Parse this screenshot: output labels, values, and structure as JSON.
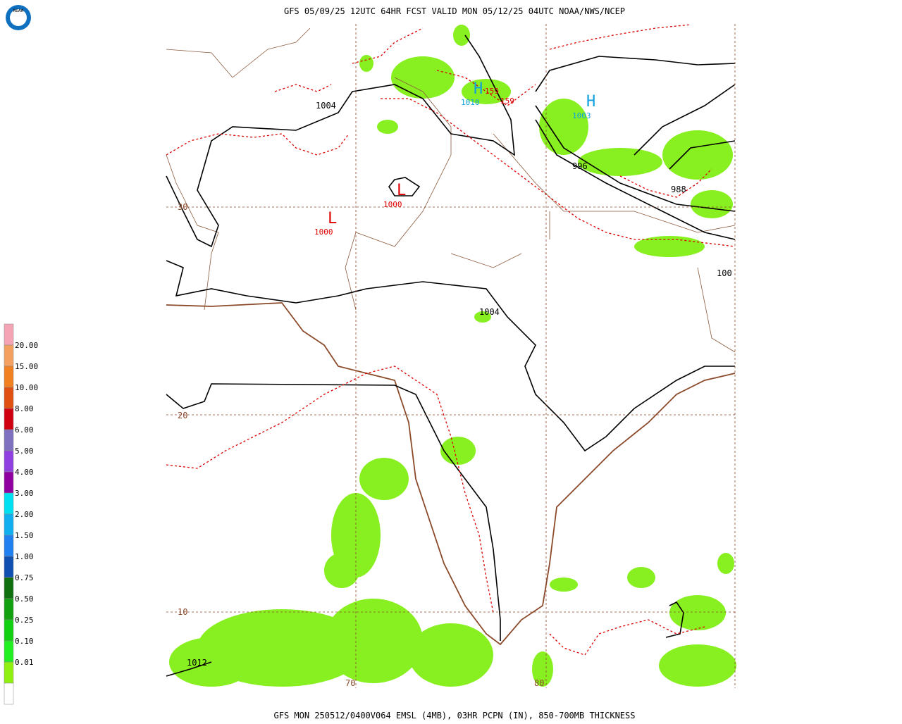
{
  "header": {
    "title": "GFS 05/09/25 12UTC 64HR FCST VALID MON 05/12/25 04UTC NOAA/NWS/NCEP",
    "logo": "NOAA"
  },
  "footer": "GFS MON 250512/0400V064 EMSL (4MB), 03HR PCPN (IN), 850-700MB THICKNESS",
  "legend": {
    "colors": [
      "#f4a4b4",
      "#f4a060",
      "#f08020",
      "#e05010",
      "#d00010",
      "#8070c0",
      "#9040e0",
      "#9000a0",
      "#00e0f0",
      "#10b0f0",
      "#2080f0",
      "#1050b0",
      "#107010",
      "#10a010",
      "#10d010",
      "#20f020",
      "#90f010",
      "#ffffff"
    ],
    "labels": [
      "20.00",
      "15.00",
      "10.00",
      "8.00",
      "6.00",
      "5.00",
      "4.00",
      "3.00",
      "2.00",
      "1.50",
      "1.00",
      "0.75",
      "0.50",
      "0.25",
      "0.10",
      "0.01"
    ]
  },
  "map": {
    "lat_labels": [
      "30",
      "20",
      "10"
    ],
    "lon_labels": [
      "70",
      "80"
    ],
    "labels": {
      "isobar_1004_n": "1004",
      "isobar_1004_c": "1004",
      "isobar_996": "996",
      "isobar_988": "988",
      "isobar_100": "100",
      "isobar_1012": "1012",
      "low_1": "L",
      "low_1_value": "1000",
      "low_2": "L",
      "low_2_value": "1000",
      "high_1": "H",
      "high_1_value": "1010",
      "high_2": "H",
      "high_2_value": "1003",
      "thick_1": "159",
      "thick_2": "159"
    }
  }
}
